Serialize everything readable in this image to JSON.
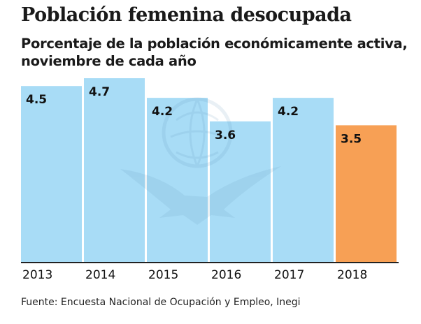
{
  "title": "Población femenina desocupada",
  "subtitle": "Porcentaje de la población económicamente activa, noviembre de cada año",
  "source": "Fuente: Encuesta Nacional de Ocupación y Empleo, Inegi",
  "colors": {
    "bar_default": "#a8dcf6",
    "bar_highlight": "#f7a055",
    "axis": "#222222"
  },
  "chart_data": {
    "type": "bar",
    "categories": [
      "2013",
      "2014",
      "2015",
      "2016",
      "2017",
      "2018"
    ],
    "values": [
      4.5,
      4.7,
      4.2,
      3.6,
      4.2,
      3.5
    ],
    "value_labels": [
      "4.5",
      "4.7",
      "4.2",
      "3.6",
      "4.2",
      "3.5"
    ],
    "highlight_index": 5,
    "ylim": [
      0,
      4.7
    ],
    "grid": false,
    "legend": "none"
  }
}
